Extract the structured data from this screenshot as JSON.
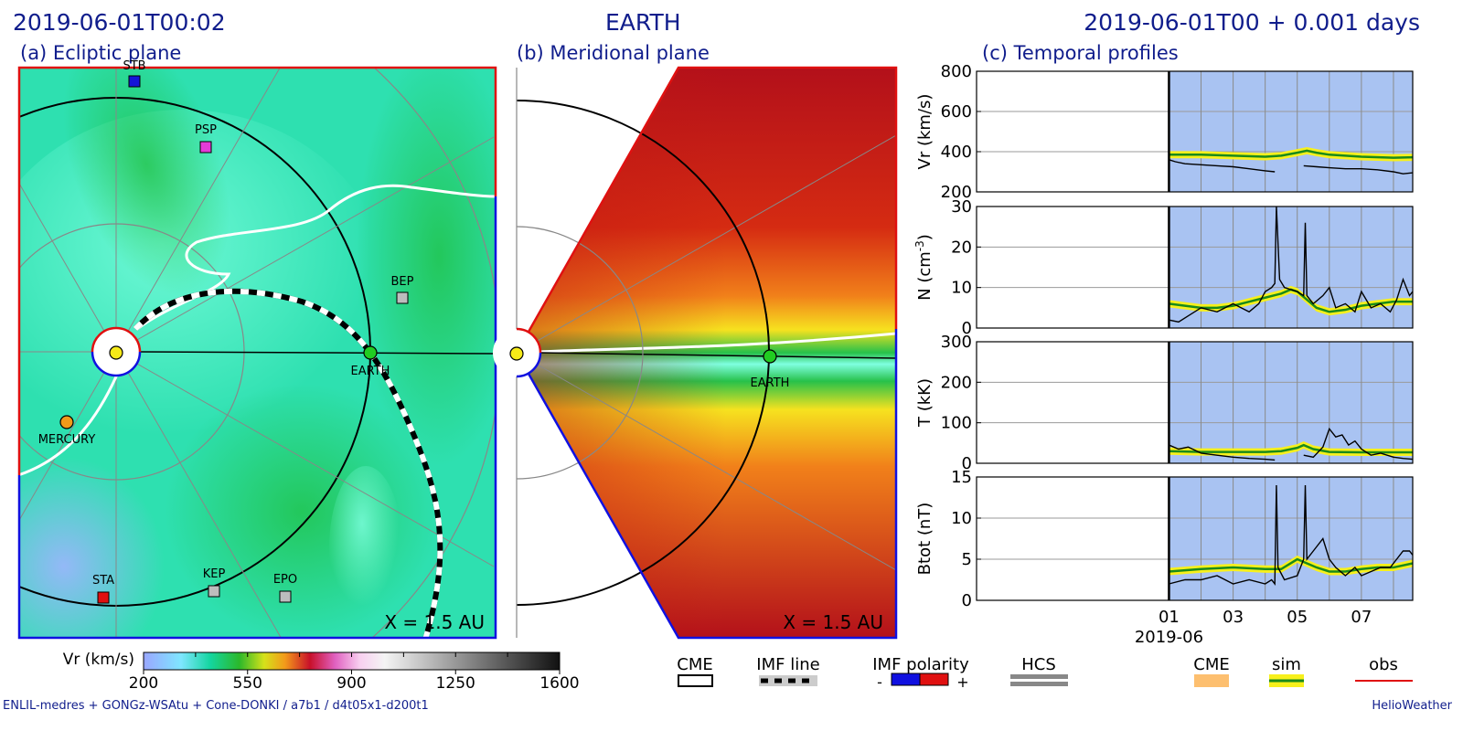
{
  "header": {
    "left_time": "2019-06-01T00:02",
    "center_title": "EARTH",
    "right_time": "2019-06-01T00 +  0.001 days"
  },
  "panels": {
    "a_title": "(a) Ecliptic plane",
    "b_title": "(b) Meridional plane",
    "c_title": "(c) Temporal profiles",
    "scale_a": "X = 1.5 AU",
    "scale_b": "X = 1.5 AU"
  },
  "bodies_a": {
    "stb": "STB",
    "psp": "PSP",
    "bep": "BEP",
    "earth": "EARTH",
    "mercury": "MERCURY",
    "sta": "STA",
    "kep": "KEP",
    "epo": "EPO"
  },
  "bodies_b": {
    "earth": "EARTH"
  },
  "colorbar": {
    "label": "Vr (km/s)",
    "ticks": [
      "200",
      "550",
      "900",
      "1250",
      "1600"
    ],
    "range": [
      200,
      1600
    ]
  },
  "legend": {
    "cme": "CME",
    "imf_line": "IMF line",
    "imf_polarity": "IMF polarity",
    "minus": "-",
    "plus": "+",
    "hcs": "HCS",
    "cme2": "CME",
    "sim": "sim",
    "obs": "obs"
  },
  "footer": {
    "left": "ENLIL-medres + GONGz-WSAtu + Cone-DONKI / a7b1 / d4t05x1-d200t1",
    "right": "HelioWeather"
  },
  "colors": {
    "title_blue": "#101d8c",
    "positive_polarity": "#e01010",
    "negative_polarity": "#1010e0",
    "shaded_period": "#a9c3f2",
    "sim_line": "#1a8a1a",
    "sim_band": "#f7f01c",
    "obs_line": "#000000",
    "cme_fill": "#fdbf6f"
  },
  "chart_data": {
    "type": "line",
    "x_tick_labels": [
      "01",
      "03",
      "05",
      "07"
    ],
    "x_date_label": "2019-06",
    "x_range_days": [
      -6,
      7.6
    ],
    "panels": [
      {
        "ylabel": "Vr (km/s)",
        "ylim": [
          200,
          800
        ],
        "yticks": [
          "800",
          "600",
          "400",
          "200"
        ],
        "series": [
          {
            "name": "sim",
            "x": [
              0,
              1,
              2,
              3,
              3.5,
              4,
              4.3,
              4.6,
              5,
              6,
              7,
              7.6
            ],
            "values": [
              385,
              385,
              380,
              375,
              380,
              395,
              405,
              395,
              385,
              375,
              370,
              372
            ]
          },
          {
            "name": "obs",
            "x": [
              0,
              0.2,
              0.5,
              1,
              1.5,
              2,
              2.5,
              3,
              3.3
            ],
            "values": [
              360,
              350,
              340,
              335,
              330,
              325,
              315,
              305,
              300
            ]
          },
          {
            "name": "obs",
            "x": [
              4.2,
              4.6,
              5,
              5.5,
              6,
              6.5,
              7,
              7.3,
              7.6
            ],
            "values": [
              330,
              325,
              320,
              315,
              315,
              310,
              300,
              290,
              295
            ]
          }
        ]
      },
      {
        "ylabel": "N (cm-3)",
        "ylim": [
          0,
          30
        ],
        "yticks": [
          "30",
          "20",
          "10",
          "0"
        ],
        "series": [
          {
            "name": "sim",
            "x": [
              0,
              0.5,
              1,
              1.5,
              2,
              2.5,
              3,
              3.5,
              3.8,
              4.0,
              4.3,
              4.6,
              5,
              5.5,
              6,
              6.5,
              7,
              7.6
            ],
            "values": [
              6,
              5.5,
              5,
              5,
              5.5,
              6.5,
              7.5,
              8.5,
              9.5,
              9,
              7,
              5,
              4,
              4.5,
              5.5,
              6,
              6.5,
              6.5
            ]
          },
          {
            "name": "obs",
            "x": [
              0,
              0.3,
              0.6,
              1,
              1.5,
              2,
              2.5,
              2.8,
              3,
              3.2,
              3.3,
              3.35,
              3.45,
              3.6,
              4.0,
              4.2,
              4.25,
              4.3,
              4.5,
              4.8,
              5.0,
              5.2,
              5.5,
              5.8,
              6.0,
              6.3,
              6.6,
              6.9,
              7.1,
              7.3,
              7.5,
              7.6
            ],
            "values": [
              2,
              1.5,
              3,
              5,
              4,
              6,
              4,
              6,
              9,
              10,
              11,
              30,
              12,
              10,
              9,
              8,
              26,
              8,
              6,
              8,
              10,
              5,
              6,
              4,
              9,
              5,
              6,
              4,
              7,
              12,
              8,
              9
            ]
          }
        ]
      },
      {
        "ylabel": "T (kK)",
        "ylim": [
          0,
          300
        ],
        "yticks": [
          "300",
          "200",
          "100",
          "0"
        ],
        "series": [
          {
            "name": "sim",
            "x": [
              0,
              1,
              2,
              3,
              3.5,
              4,
              4.2,
              4.5,
              5,
              6,
              7,
              7.6
            ],
            "values": [
              30,
              28,
              28,
              28,
              30,
              38,
              45,
              35,
              28,
              27,
              27,
              27
            ]
          },
          {
            "name": "obs",
            "x": [
              0,
              0.3,
              0.6,
              1,
              1.5,
              2,
              2.5,
              3,
              3.3
            ],
            "values": [
              45,
              35,
              40,
              25,
              20,
              15,
              12,
              10,
              8
            ]
          },
          {
            "name": "obs",
            "x": [
              4.2,
              4.5,
              4.8,
              5.0,
              5.2,
              5.4,
              5.6,
              5.8,
              6.0,
              6.3,
              6.6,
              7.0,
              7.3,
              7.6
            ],
            "values": [
              20,
              15,
              40,
              85,
              65,
              70,
              45,
              55,
              35,
              20,
              25,
              15,
              12,
              10
            ]
          }
        ]
      },
      {
        "ylabel": "Btot (nT)",
        "ylim": [
          0,
          15
        ],
        "yticks": [
          "15",
          "10",
          "5",
          "0"
        ],
        "series": [
          {
            "name": "sim",
            "x": [
              0,
              1,
              2,
              3,
              3.5,
              4,
              4.3,
              4.6,
              5,
              5.5,
              6,
              6.5,
              7,
              7.6
            ],
            "values": [
              3.5,
              3.8,
              4,
              3.8,
              3.8,
              5,
              4.5,
              4,
              3.5,
              3.5,
              3.8,
              4,
              4,
              4.5
            ]
          },
          {
            "name": "obs",
            "x": [
              0,
              0.5,
              1,
              1.5,
              2,
              2.5,
              3,
              3.2,
              3.3,
              3.35,
              3.4,
              3.6,
              4.0,
              4.2,
              4.25,
              4.3,
              4.5,
              4.8,
              5.0,
              5.2,
              5.5,
              5.8,
              6.0,
              6.3,
              6.6,
              6.9,
              7.1,
              7.3,
              7.5,
              7.6
            ],
            "values": [
              2,
              2.5,
              2.5,
              3,
              2,
              2.5,
              2,
              2.5,
              2,
              14,
              4,
              2.5,
              3,
              5,
              14,
              5,
              6,
              7.5,
              5,
              4,
              3,
              4,
              3,
              3.5,
              4,
              4,
              5,
              6,
              6,
              5.5
            ]
          }
        ]
      }
    ]
  }
}
